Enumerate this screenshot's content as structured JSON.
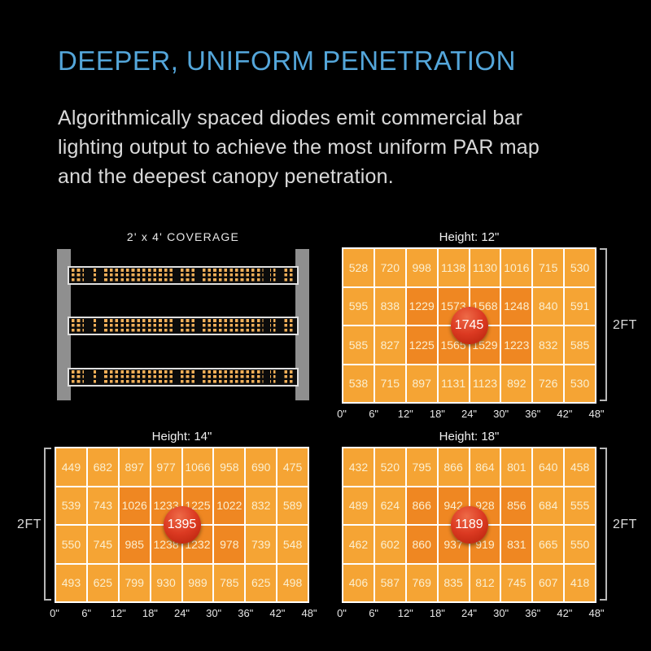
{
  "header": {
    "title": "DEEPER, UNIFORM PENETRATION",
    "description_lines": [
      "Algorithmically spaced diodes emit commercial bar",
      "lighting output to achieve the most uniform PAR map",
      "and the deepest canopy penetration."
    ]
  },
  "coverage": {
    "title": "2' x 4' COVERAGE",
    "led_bar_count": 3
  },
  "colors": {
    "background": "#000000",
    "accent_blue": "#54a6da",
    "body_text": "#d9d9d9",
    "cell_orange": "#f5a434",
    "cell_hot_orange": "#ef8722",
    "peak_red": "#d63822",
    "grid_line_white": "#ffffff",
    "diode_amber": "#f1af58",
    "rail_gray": "#8f8f8f"
  },
  "chart_data": [
    {
      "type": "heatmap",
      "title": "Height: 12\"",
      "x_tick_labels": [
        "0\"",
        "6\"",
        "12\"",
        "18\"",
        "24\"",
        "30\"",
        "36\"",
        "42\"",
        "48\""
      ],
      "side_label": "2FT",
      "side_label_side": "right",
      "peak_value": 1745,
      "hot_region": {
        "row_start": 1,
        "row_end": 2,
        "col_start": 2,
        "col_end": 5
      },
      "rows": [
        [
          528,
          720,
          998,
          1138,
          1130,
          1016,
          715,
          530
        ],
        [
          595,
          838,
          1229,
          1573,
          1568,
          1248,
          840,
          591
        ],
        [
          585,
          827,
          1225,
          1565,
          1529,
          1223,
          832,
          585
        ],
        [
          538,
          715,
          897,
          1131,
          1123,
          892,
          726,
          530
        ]
      ]
    },
    {
      "type": "heatmap",
      "title": "Height: 14\"",
      "x_tick_labels": [
        "0\"",
        "6\"",
        "12\"",
        "18\"",
        "24\"",
        "30\"",
        "36\"",
        "42\"",
        "48\""
      ],
      "side_label": "2FT",
      "side_label_side": "left",
      "peak_value": 1395,
      "hot_region": {
        "row_start": 1,
        "row_end": 2,
        "col_start": 2,
        "col_end": 5
      },
      "rows": [
        [
          449,
          682,
          897,
          977,
          1066,
          958,
          690,
          475
        ],
        [
          539,
          743,
          1026,
          1233,
          1225,
          1022,
          832,
          589
        ],
        [
          550,
          745,
          985,
          1238,
          1232,
          978,
          739,
          548
        ],
        [
          493,
          625,
          799,
          930,
          989,
          785,
          625,
          498
        ]
      ]
    },
    {
      "type": "heatmap",
      "title": "Height: 18\"",
      "x_tick_labels": [
        "0\"",
        "6\"",
        "12\"",
        "18\"",
        "24\"",
        "30\"",
        "36\"",
        "42\"",
        "48\""
      ],
      "side_label": "2FT",
      "side_label_side": "right",
      "peak_value": 1189,
      "hot_region": {
        "row_start": 1,
        "row_end": 2,
        "col_start": 2,
        "col_end": 5
      },
      "rows": [
        [
          432,
          520,
          795,
          866,
          864,
          801,
          640,
          458
        ],
        [
          489,
          624,
          866,
          942,
          928,
          856,
          684,
          555
        ],
        [
          462,
          602,
          860,
          937,
          919,
          831,
          665,
          550
        ],
        [
          406,
          587,
          769,
          835,
          812,
          745,
          607,
          418
        ]
      ]
    }
  ]
}
